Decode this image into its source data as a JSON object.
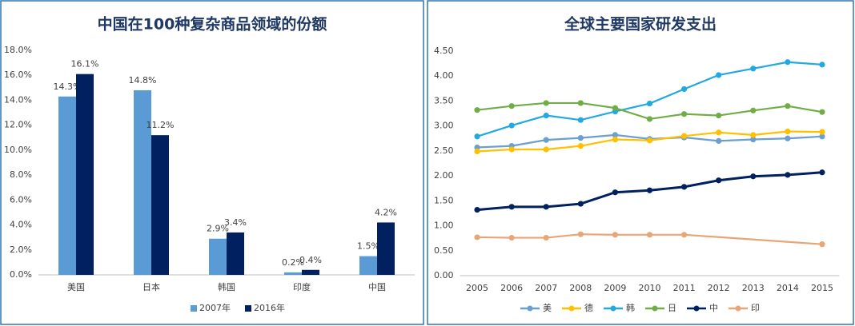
{
  "chart_data": [
    {
      "type": "bar",
      "title": "中国在100种复杂商品领域的份额",
      "categories": [
        "美国",
        "日本",
        "韩国",
        "印度",
        "中国"
      ],
      "series": [
        {
          "name": "2007年",
          "color": "#5b9bd5",
          "values": [
            14.3,
            14.8,
            2.9,
            0.2,
            1.5
          ],
          "value_labels": [
            "14.3%",
            "14.8%",
            "2.9%",
            "0.2%",
            "1.5%"
          ]
        },
        {
          "name": "2016年",
          "color": "#002060",
          "values": [
            16.1,
            11.2,
            3.4,
            0.4,
            4.2
          ],
          "value_labels": [
            "16.1%",
            "11.2%",
            "3.4%",
            "0.4%",
            "4.2%"
          ]
        }
      ],
      "ylim": [
        0,
        18
      ],
      "yticks": [
        {
          "value": 0,
          "label": "0.0%"
        },
        {
          "value": 2,
          "label": "2.0%"
        },
        {
          "value": 4,
          "label": "4.0%"
        },
        {
          "value": 6,
          "label": "6.0%"
        },
        {
          "value": 8,
          "label": "8.0%"
        },
        {
          "value": 10,
          "label": "10.0%"
        },
        {
          "value": 12,
          "label": "12.0%"
        },
        {
          "value": 14,
          "label": "14.0%"
        },
        {
          "value": 16,
          "label": "16.0%"
        },
        {
          "value": 18,
          "label": "18.0%"
        }
      ],
      "grid": false
    },
    {
      "type": "line",
      "title": "全球主要国家研发支出",
      "x": [
        2005,
        2006,
        2007,
        2008,
        2009,
        2010,
        2011,
        2012,
        2013,
        2014,
        2015
      ],
      "series": [
        {
          "name": "美",
          "color": "#6a9fcf",
          "values": [
            2.57,
            2.6,
            2.72,
            2.76,
            2.82,
            2.74,
            2.77,
            2.7,
            2.73,
            2.75,
            2.79
          ]
        },
        {
          "name": "德",
          "color": "#ffc000",
          "values": [
            2.49,
            2.53,
            2.53,
            2.6,
            2.73,
            2.71,
            2.8,
            2.87,
            2.82,
            2.89,
            2.88
          ]
        },
        {
          "name": "韩",
          "color": "#23a9e1",
          "values": [
            2.79,
            3.01,
            3.21,
            3.12,
            3.29,
            3.45,
            3.74,
            4.02,
            4.15,
            4.28,
            4.23
          ]
        },
        {
          "name": "日",
          "color": "#70ad47",
          "values": [
            3.32,
            3.4,
            3.46,
            3.46,
            3.36,
            3.14,
            3.24,
            3.21,
            3.31,
            3.4,
            3.28
          ]
        },
        {
          "name": "中",
          "color": "#002060",
          "values": [
            1.32,
            1.38,
            1.38,
            1.44,
            1.67,
            1.71,
            1.78,
            1.91,
            1.99,
            2.02,
            2.07
          ]
        },
        {
          "name": "印",
          "color": "#e8a677",
          "x": [
            2005,
            2006,
            2007,
            2008,
            2009,
            2010,
            2011,
            2015
          ],
          "values": [
            0.77,
            0.76,
            0.76,
            0.83,
            0.82,
            0.82,
            0.82,
            0.63
          ]
        }
      ],
      "xlim": [
        2004.5,
        2015.5
      ],
      "xticks": [
        2005,
        2006,
        2007,
        2008,
        2009,
        2010,
        2011,
        2012,
        2013,
        2014,
        2015
      ],
      "ylim": [
        0,
        4.5
      ],
      "yticks": [
        {
          "value": 0,
          "label": "0.00"
        },
        {
          "value": 0.5,
          "label": "0.50"
        },
        {
          "value": 1,
          "label": "1.00"
        },
        {
          "value": 1.5,
          "label": "1.50"
        },
        {
          "value": 2,
          "label": "2.00"
        },
        {
          "value": 2.5,
          "label": "2.50"
        },
        {
          "value": 3,
          "label": "3.00"
        },
        {
          "value": 3.5,
          "label": "3.50"
        },
        {
          "value": 4,
          "label": "4.00"
        },
        {
          "value": 4.5,
          "label": "4.50"
        }
      ],
      "grid": false
    }
  ]
}
